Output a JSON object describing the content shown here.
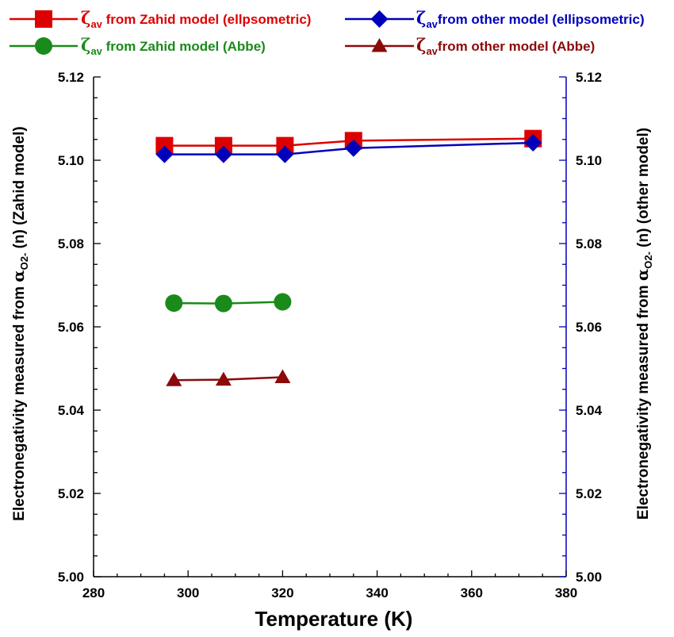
{
  "chart_data": {
    "type": "line",
    "xlabel": "Temperature (K)",
    "xlim": [
      280,
      380
    ],
    "xticks": [
      "280",
      "300",
      "320",
      "340",
      "360",
      "380"
    ],
    "ylim": [
      5.0,
      5.12
    ],
    "yticks": [
      "5.00",
      "5.02",
      "5.04",
      "5.06",
      "5.08",
      "5.10",
      "5.12"
    ],
    "ylabel_left": {
      "text": "Electronegativity measured  from",
      "symbol": "α",
      "subscript": "O2-",
      "suffix": " (n) (Zahid model)"
    },
    "ylabel_right": {
      "text": "Electronegativity measured  from",
      "symbol": "α",
      "subscript": "O2-",
      "suffix": " (n) (other model)"
    },
    "axis_color_left": "#000000",
    "axis_color_right": "#0000bb",
    "grid": false,
    "legend_position": "top",
    "series": [
      {
        "symbol": "ζ",
        "subscript": "av",
        "label": " from Zahid model (ellpsometric)",
        "color": "#dd0000",
        "marker": "square",
        "x": [
          295,
          307.5,
          320.5,
          335,
          373
        ],
        "y": [
          5.1035,
          5.1035,
          5.1035,
          5.1047,
          5.1052
        ]
      },
      {
        "symbol": "ζ",
        "subscript": "av",
        "label": "from other model (ellipsometric)",
        "color": "#0000bb",
        "marker": "diamond",
        "x": [
          295,
          307.5,
          320.5,
          335,
          373
        ],
        "y": [
          5.1014,
          5.1014,
          5.1014,
          5.1029,
          5.1042
        ]
      },
      {
        "symbol": "ζ",
        "subscript": "av",
        "label": " from Zahid model (Abbe)",
        "color": "#1a8a1a",
        "marker": "circle",
        "x": [
          297,
          307.5,
          320
        ],
        "y": [
          5.0657,
          5.0656,
          5.066
        ]
      },
      {
        "symbol": "ζ",
        "subscript": "av",
        "label": "from other model (Abbe)",
        "color": "#8b0a0a",
        "marker": "triangle",
        "x": [
          297,
          307.5,
          320
        ],
        "y": [
          5.0472,
          5.0473,
          5.0479
        ]
      }
    ]
  }
}
